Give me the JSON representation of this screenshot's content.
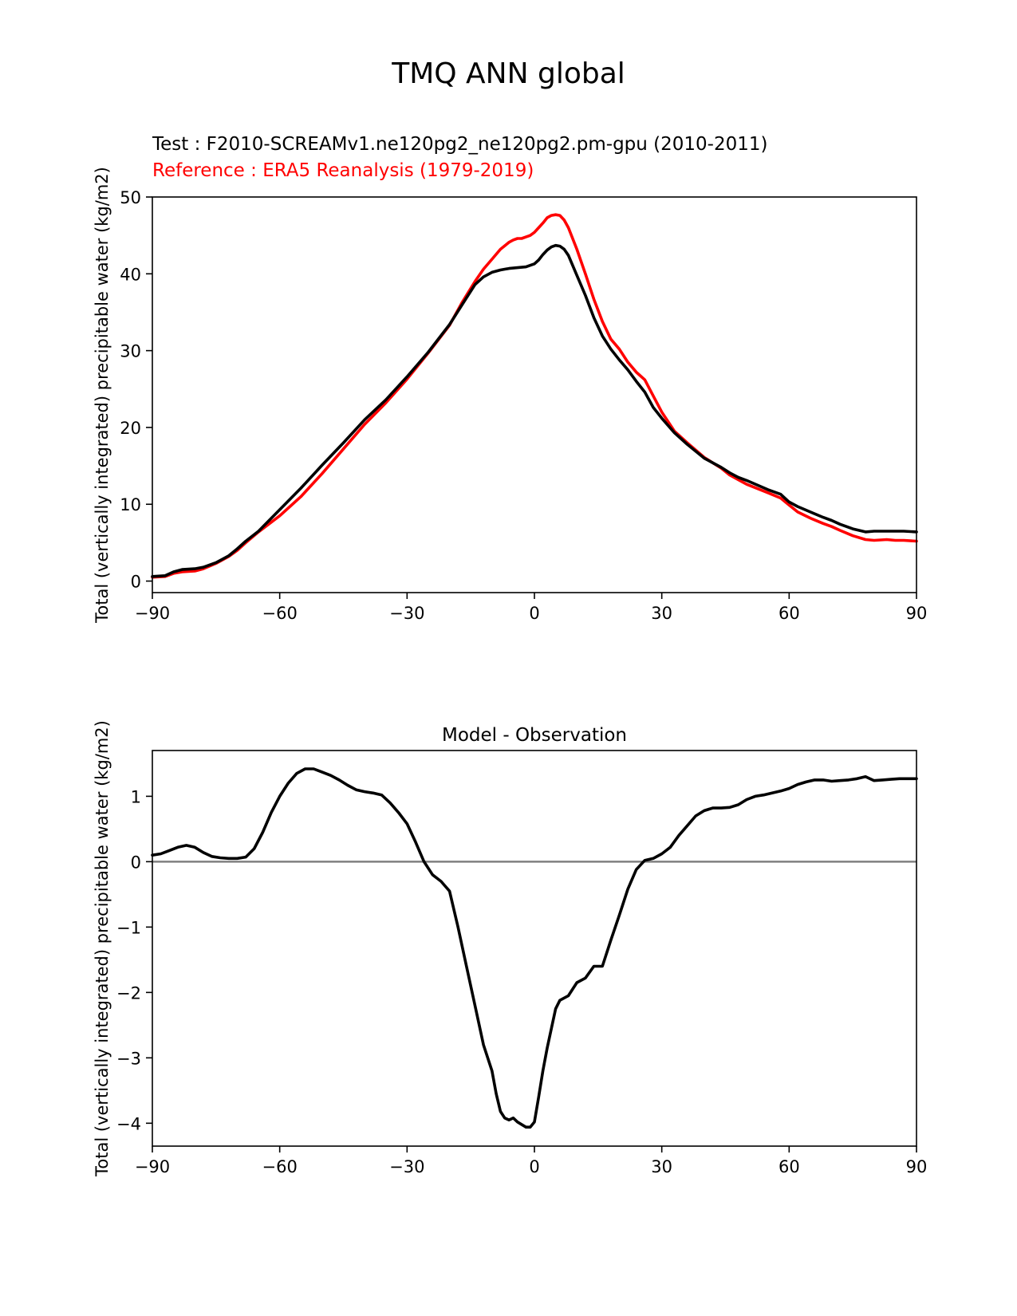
{
  "figure": {
    "title": "TMQ ANN global"
  },
  "chart_data": [
    {
      "type": "line",
      "test_label": "Test : F2010-SCREAMv1.ne120pg2_ne120pg2.pm-gpu (2010-2011)",
      "ref_label": "Reference : ERA5 Reanalysis (1979-2019)",
      "xlabel": "",
      "ylabel": "Total (vertically integrated) precipitable water (kg/m2)",
      "xlim": [
        -90,
        90
      ],
      "ylim": [
        -1.5,
        50
      ],
      "xticks": [
        -90,
        -60,
        -30,
        0,
        30,
        60,
        90
      ],
      "xtick_labels": [
        "−90",
        "−60",
        "−30",
        "0",
        "30",
        "60",
        "90"
      ],
      "yticks": [
        0,
        10,
        20,
        30,
        40,
        50
      ],
      "ytick_labels": [
        "0",
        "10",
        "20",
        "30",
        "40",
        "50"
      ],
      "colors": {
        "test": "#000000",
        "ref": "#ff0000"
      },
      "series": [
        {
          "name": "test",
          "x": [
            -90,
            -87,
            -85,
            -83,
            -80,
            -78,
            -75,
            -72,
            -70,
            -68,
            -65,
            -60,
            -55,
            -50,
            -45,
            -40,
            -35,
            -30,
            -25,
            -20,
            -17,
            -14,
            -12,
            -10,
            -8,
            -6,
            -4,
            -2,
            0,
            1,
            2,
            3,
            4,
            5,
            6,
            7,
            8,
            10,
            12,
            14,
            16,
            18,
            20,
            22,
            24,
            26,
            28,
            30,
            33,
            36,
            40,
            44,
            46,
            48,
            50,
            55,
            58,
            60,
            62,
            65,
            68,
            70,
            72,
            75,
            78,
            80,
            83,
            85,
            87,
            90
          ],
          "y": [
            0.6,
            0.7,
            1.2,
            1.5,
            1.6,
            1.8,
            2.4,
            3.3,
            4.2,
            5.2,
            6.5,
            9.3,
            12.1,
            15.1,
            18.0,
            21.0,
            23.6,
            26.6,
            29.8,
            33.4,
            36.0,
            38.6,
            39.6,
            40.2,
            40.5,
            40.7,
            40.8,
            40.9,
            41.3,
            41.8,
            42.5,
            43.1,
            43.5,
            43.7,
            43.6,
            43.2,
            42.4,
            39.8,
            37.2,
            34.3,
            31.9,
            30.2,
            28.8,
            27.5,
            26.0,
            24.6,
            22.6,
            21.2,
            19.3,
            17.8,
            16.0,
            14.8,
            14.1,
            13.5,
            13.1,
            11.9,
            11.3,
            10.3,
            9.7,
            9.0,
            8.3,
            7.9,
            7.4,
            6.8,
            6.4,
            6.5,
            6.5,
            6.5,
            6.5,
            6.4
          ]
        },
        {
          "name": "ref",
          "x": [
            -90,
            -87,
            -85,
            -83,
            -80,
            -78,
            -75,
            -72,
            -70,
            -68,
            -65,
            -60,
            -55,
            -50,
            -45,
            -40,
            -35,
            -30,
            -25,
            -20,
            -17,
            -14,
            -12,
            -10,
            -8,
            -6,
            -5,
            -4,
            -3,
            -2,
            -1,
            0,
            1,
            2,
            3,
            4,
            5,
            6,
            7,
            8,
            10,
            12,
            14,
            16,
            18,
            20,
            22,
            24,
            26,
            28,
            30,
            33,
            36,
            40,
            44,
            46,
            48,
            50,
            55,
            58,
            60,
            62,
            65,
            68,
            70,
            72,
            75,
            78,
            80,
            83,
            85,
            87,
            90
          ],
          "y": [
            0.5,
            0.6,
            1.0,
            1.2,
            1.3,
            1.6,
            2.3,
            3.2,
            4.0,
            5.0,
            6.4,
            8.5,
            11.0,
            14.0,
            17.2,
            20.4,
            23.2,
            26.3,
            29.7,
            33.3,
            36.3,
            39.0,
            40.6,
            41.9,
            43.2,
            44.1,
            44.4,
            44.6,
            44.6,
            44.8,
            45.0,
            45.4,
            46.0,
            46.6,
            47.3,
            47.6,
            47.7,
            47.6,
            47.0,
            46.0,
            43.2,
            40.0,
            36.7,
            33.8,
            31.5,
            30.2,
            28.5,
            27.2,
            26.2,
            24.1,
            22.0,
            19.5,
            18.0,
            16.1,
            14.7,
            13.8,
            13.2,
            12.6,
            11.5,
            10.8,
            9.9,
            9.0,
            8.2,
            7.5,
            7.1,
            6.6,
            5.9,
            5.4,
            5.3,
            5.4,
            5.3,
            5.3,
            5.2
          ]
        }
      ]
    },
    {
      "type": "line",
      "title": "Model - Observation",
      "xlabel": "",
      "ylabel": "Total (vertically integrated) precipitable water (kg/m2)",
      "xlim": [
        -90,
        90
      ],
      "ylim": [
        -4.35,
        1.7
      ],
      "xticks": [
        -90,
        -60,
        -30,
        0,
        30,
        60,
        90
      ],
      "xtick_labels": [
        "−90",
        "−60",
        "−30",
        "0",
        "30",
        "60",
        "90"
      ],
      "yticks": [
        -4,
        -3,
        -2,
        -1,
        0,
        1
      ],
      "ytick_labels": [
        "−4",
        "−3",
        "−2",
        "−1",
        "0",
        "1"
      ],
      "zero_line": 0,
      "colors": {
        "diff": "#000000",
        "zero": "#808080"
      },
      "series": [
        {
          "name": "diff",
          "x": [
            -90,
            -88,
            -86,
            -84,
            -82,
            -80,
            -78,
            -76,
            -74,
            -72,
            -70,
            -68,
            -66,
            -64,
            -62,
            -60,
            -58,
            -56,
            -54,
            -52,
            -50,
            -48,
            -46,
            -44,
            -42,
            -40,
            -38,
            -36,
            -34,
            -32,
            -30,
            -28,
            -26,
            -24,
            -22,
            -20,
            -18,
            -16,
            -14,
            -12,
            -10,
            -9,
            -8,
            -7,
            -6,
            -5,
            -4,
            -3,
            -2,
            -1,
            0,
            1,
            2,
            3,
            4,
            5,
            6,
            8,
            10,
            12,
            14,
            16,
            18,
            20,
            22,
            24,
            26,
            28,
            30,
            32,
            34,
            36,
            38,
            40,
            42,
            44,
            46,
            48,
            50,
            52,
            54,
            56,
            58,
            60,
            62,
            64,
            66,
            68,
            70,
            72,
            74,
            76,
            78,
            80,
            82,
            84,
            86,
            88,
            90
          ],
          "y": [
            0.1,
            0.12,
            0.17,
            0.22,
            0.25,
            0.22,
            0.14,
            0.08,
            0.06,
            0.05,
            0.05,
            0.07,
            0.2,
            0.45,
            0.75,
            1.0,
            1.2,
            1.35,
            1.42,
            1.42,
            1.37,
            1.32,
            1.25,
            1.17,
            1.1,
            1.07,
            1.05,
            1.02,
            0.9,
            0.75,
            0.58,
            0.3,
            0.0,
            -0.2,
            -0.3,
            -0.45,
            -1.0,
            -1.6,
            -2.2,
            -2.8,
            -3.2,
            -3.55,
            -3.82,
            -3.92,
            -3.95,
            -3.92,
            -3.98,
            -4.02,
            -4.06,
            -4.06,
            -3.98,
            -3.6,
            -3.2,
            -2.85,
            -2.55,
            -2.25,
            -2.12,
            -2.05,
            -1.85,
            -1.78,
            -1.6,
            -1.6,
            -1.2,
            -0.82,
            -0.42,
            -0.12,
            0.02,
            0.05,
            0.12,
            0.22,
            0.4,
            0.55,
            0.7,
            0.78,
            0.82,
            0.82,
            0.83,
            0.87,
            0.95,
            1.0,
            1.02,
            1.05,
            1.08,
            1.12,
            1.18,
            1.22,
            1.25,
            1.25,
            1.23,
            1.24,
            1.25,
            1.27,
            1.3,
            1.24,
            1.25,
            1.26,
            1.27,
            1.27,
            1.27
          ]
        }
      ]
    }
  ]
}
